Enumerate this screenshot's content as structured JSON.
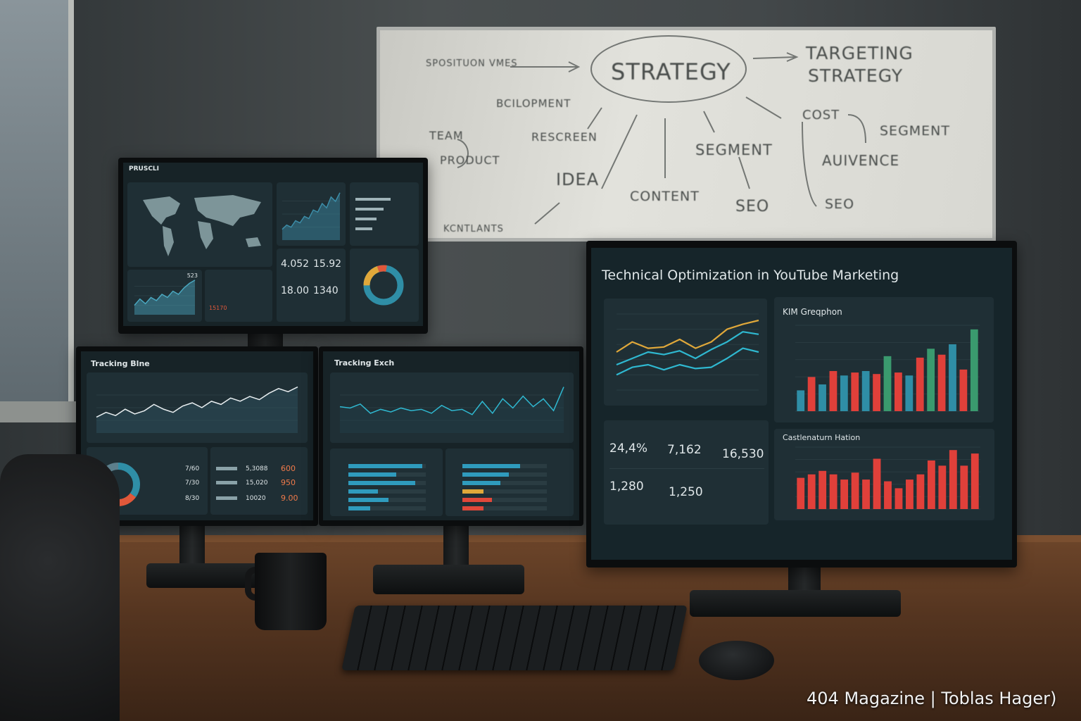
{
  "watermark": "404 Magazine | Toblas Hager)",
  "whiteboard": {
    "words": [
      "SPOSITUON VMES",
      "STRATEGY",
      "TARGETING",
      "STRATEGY",
      "BCILOPMENT",
      "TEAM",
      "PRODUCT",
      "RESCREEN",
      "IDEA",
      "CONTENT",
      "SEGMENT",
      "SEO",
      "COST",
      "SEGMENT",
      "AUIVENCE",
      "SEO",
      "KCNTLANTS"
    ],
    "ink_color": "#4a4e4c"
  },
  "top_monitor": {
    "title": "PRUSCLI",
    "kpis": [
      "4.052",
      "15.92",
      "18.00",
      "1340"
    ],
    "panel_value": "523",
    "red_value": "15170",
    "area": [
      10,
      14,
      12,
      18,
      16,
      22,
      20,
      28,
      26,
      34,
      30,
      40,
      36,
      44
    ],
    "bottom_line": [
      12,
      20,
      14,
      22,
      18,
      26,
      22,
      30,
      26,
      34,
      40,
      44
    ]
  },
  "bottom_left_monitor": {
    "title": "Tracking Blne",
    "line": [
      20,
      26,
      22,
      30,
      24,
      28,
      36,
      30,
      26,
      34,
      38,
      32,
      40,
      36,
      44,
      40,
      46,
      42,
      50,
      56,
      52,
      58
    ],
    "donut": [
      {
        "value": 35,
        "color": "#2f8ea6"
      },
      {
        "value": 40,
        "color": "#e0583a"
      },
      {
        "value": 25,
        "color": "#5c7f8c"
      }
    ],
    "values": [
      "7/60",
      "7/30",
      "8/30"
    ],
    "orange_values": [
      "600",
      "950",
      "9.00"
    ],
    "mid_values": [
      "5,3088",
      "15,020",
      "10020"
    ]
  },
  "bottom_mid_monitor": {
    "title": "Tracking Exch",
    "line": [
      40,
      38,
      44,
      30,
      36,
      32,
      38,
      34,
      36,
      30,
      42,
      34,
      36,
      28,
      48,
      30,
      52,
      38,
      56,
      40,
      52,
      34,
      70
    ],
    "left_bars": [
      0.95,
      0.62,
      0.86,
      0.38,
      0.52,
      0.28
    ],
    "right_bars": [
      {
        "v": 0.68,
        "c": "#2f9bbd"
      },
      {
        "v": 0.55,
        "c": "#2f9bbd"
      },
      {
        "v": 0.45,
        "c": "#2f9bbd"
      },
      {
        "v": 0.25,
        "c": "#e0a83a"
      },
      {
        "v": 0.35,
        "c": "#e0483a"
      },
      {
        "v": 0.25,
        "c": "#e0483a"
      }
    ]
  },
  "right_monitor": {
    "title": "Technical Optimization in YouTube Marketing",
    "line_chart": {
      "series": [
        {
          "color": "#e0a83a",
          "values": [
            30,
            38,
            33,
            34,
            40,
            33,
            38,
            48,
            52,
            55
          ]
        },
        {
          "color": "#2fb8d0",
          "values": [
            20,
            25,
            30,
            28,
            31,
            25,
            32,
            38,
            46,
            44
          ]
        },
        {
          "color": "#2fb8d0",
          "values": [
            12,
            18,
            20,
            16,
            20,
            17,
            18,
            25,
            33,
            30
          ]
        }
      ]
    },
    "bar_chart": {
      "title": "KIM Greqphon",
      "values": [
        14,
        23,
        18,
        27,
        24,
        26,
        27,
        25,
        37,
        26,
        24,
        36,
        42,
        38,
        45,
        28,
        55
      ],
      "colors": [
        "#2f8ea6",
        "#e0403a",
        "#2f8ea6",
        "#e0403a",
        "#2f8ea6",
        "#e0403a",
        "#2f8ea6",
        "#e0403a",
        "#3a9a6e",
        "#e0403a",
        "#2f8ea6",
        "#e0403a",
        "#3a9a6e",
        "#e0403a",
        "#2f8ea6",
        "#e0403a",
        "#3a9a6e"
      ]
    },
    "kpis": [
      {
        "value": "24,4%"
      },
      {
        "value": "7,162"
      },
      {
        "value": "16,530"
      },
      {
        "value": "1,280"
      },
      {
        "value": "1,250"
      }
    ],
    "red_chart": {
      "title": "Castlenaturn Hation",
      "values": [
        18,
        20,
        22,
        20,
        17,
        21,
        17,
        29,
        16,
        12,
        17,
        20,
        28,
        25,
        34,
        25,
        32
      ],
      "color": "#e0403a"
    }
  }
}
